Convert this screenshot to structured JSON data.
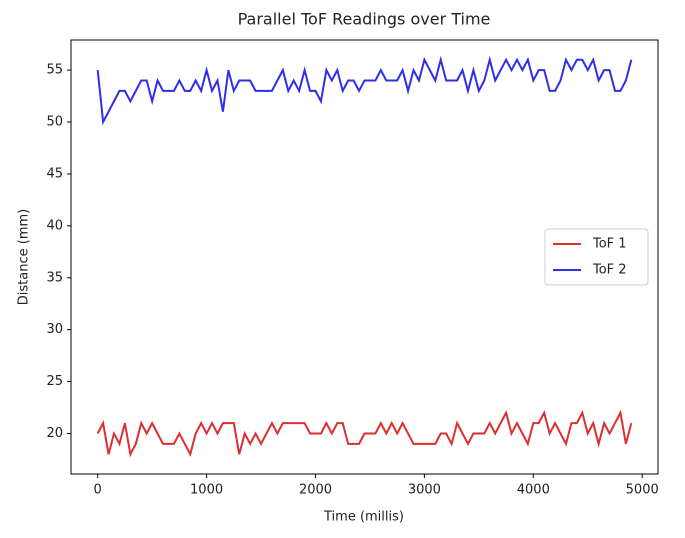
{
  "chart_data": {
    "type": "line",
    "title": "Parallel ToF Readings over Time",
    "xlabel": "Time (millis)",
    "ylabel": "Distance (mm)",
    "x": [
      0,
      50,
      100,
      150,
      200,
      250,
      300,
      350,
      400,
      450,
      500,
      550,
      600,
      650,
      700,
      750,
      800,
      850,
      900,
      950,
      1000,
      1050,
      1100,
      1150,
      1200,
      1250,
      1300,
      1350,
      1400,
      1450,
      1500,
      1550,
      1600,
      1650,
      1700,
      1750,
      1800,
      1850,
      1900,
      1950,
      2000,
      2050,
      2100,
      2150,
      2200,
      2250,
      2300,
      2350,
      2400,
      2450,
      2500,
      2550,
      2600,
      2650,
      2700,
      2750,
      2800,
      2850,
      2900,
      2950,
      3000,
      3050,
      3100,
      3150,
      3200,
      3250,
      3300,
      3350,
      3400,
      3450,
      3500,
      3550,
      3600,
      3650,
      3700,
      3750,
      3800,
      3850,
      3900,
      3950,
      4000,
      4050,
      4100,
      4150,
      4200,
      4250,
      4300,
      4350,
      4400,
      4450,
      4500,
      4550,
      4600,
      4650,
      4700,
      4750,
      4800,
      4850,
      4900
    ],
    "series": [
      {
        "name": "ToF 1",
        "color": "#dc2f2f",
        "values": [
          20,
          21,
          18,
          20,
          19,
          21,
          18,
          19,
          21,
          20,
          21,
          20,
          19,
          19,
          19,
          20,
          19,
          18,
          20,
          21,
          20,
          21,
          20,
          21,
          21,
          21,
          18,
          20,
          19,
          20,
          19,
          20,
          21,
          20,
          21,
          21,
          21,
          21,
          21,
          20,
          20,
          20,
          21,
          20,
          21,
          21,
          19,
          19,
          19,
          20,
          20,
          20,
          21,
          20,
          21,
          20,
          21,
          20,
          19,
          19,
          19,
          19,
          19,
          20,
          20,
          19,
          21,
          20,
          19,
          20,
          20,
          20,
          21,
          20,
          21,
          22,
          20,
          21,
          20,
          19,
          21,
          21,
          22,
          20,
          21,
          20,
          19,
          21,
          21,
          22,
          20,
          21,
          19,
          21,
          20,
          21,
          22,
          19,
          21
        ]
      },
      {
        "name": "ToF 2",
        "color": "#2f2fe8",
        "values": [
          55,
          50,
          51,
          52,
          53,
          53,
          52,
          53,
          54,
          54,
          52,
          54,
          53,
          53,
          53,
          54,
          53,
          53,
          54,
          53,
          55,
          53,
          54,
          51,
          55,
          53,
          54,
          54,
          54,
          53,
          53,
          53,
          53,
          54,
          55,
          53,
          54,
          53,
          55,
          53,
          53,
          52,
          55,
          54,
          55,
          53,
          54,
          54,
          53,
          54,
          54,
          54,
          55,
          54,
          54,
          54,
          55,
          53,
          55,
          54,
          56,
          55,
          54,
          56,
          54,
          54,
          54,
          55,
          53,
          55,
          53,
          54,
          56,
          54,
          55,
          56,
          55,
          56,
          55,
          56,
          54,
          55,
          55,
          53,
          53,
          54,
          56,
          55,
          56,
          56,
          55,
          56,
          54,
          55,
          55,
          53,
          53,
          54,
          56
        ]
      }
    ],
    "xlim": [
      -245,
      5145
    ],
    "xticks": [
      0,
      1000,
      2000,
      3000,
      4000,
      5000
    ],
    "ylim": [
      16.1,
      57.9
    ],
    "yticks": [
      20,
      25,
      30,
      35,
      40,
      45,
      50,
      55
    ],
    "legend": "center right"
  }
}
